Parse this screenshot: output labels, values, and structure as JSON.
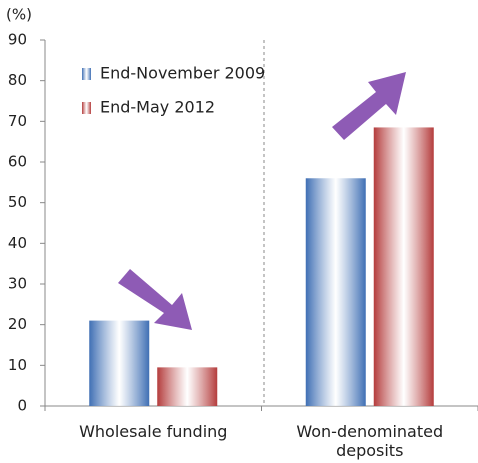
{
  "chart_data": {
    "type": "bar",
    "y_unit_label": "(%)",
    "categories": [
      "Wholesale funding",
      "Won-denominated deposits"
    ],
    "series": [
      {
        "name": "End-November 2009",
        "color": "#3f6fb4",
        "values": [
          21,
          56
        ]
      },
      {
        "name": "End-May 2012",
        "color": "#b43c3c",
        "values": [
          9.5,
          68.5
        ]
      }
    ],
    "ylim": [
      0,
      90
    ],
    "yticks": [
      0,
      10,
      20,
      30,
      40,
      50,
      60,
      70,
      80,
      90
    ],
    "grid": false,
    "legend": "upper left"
  }
}
